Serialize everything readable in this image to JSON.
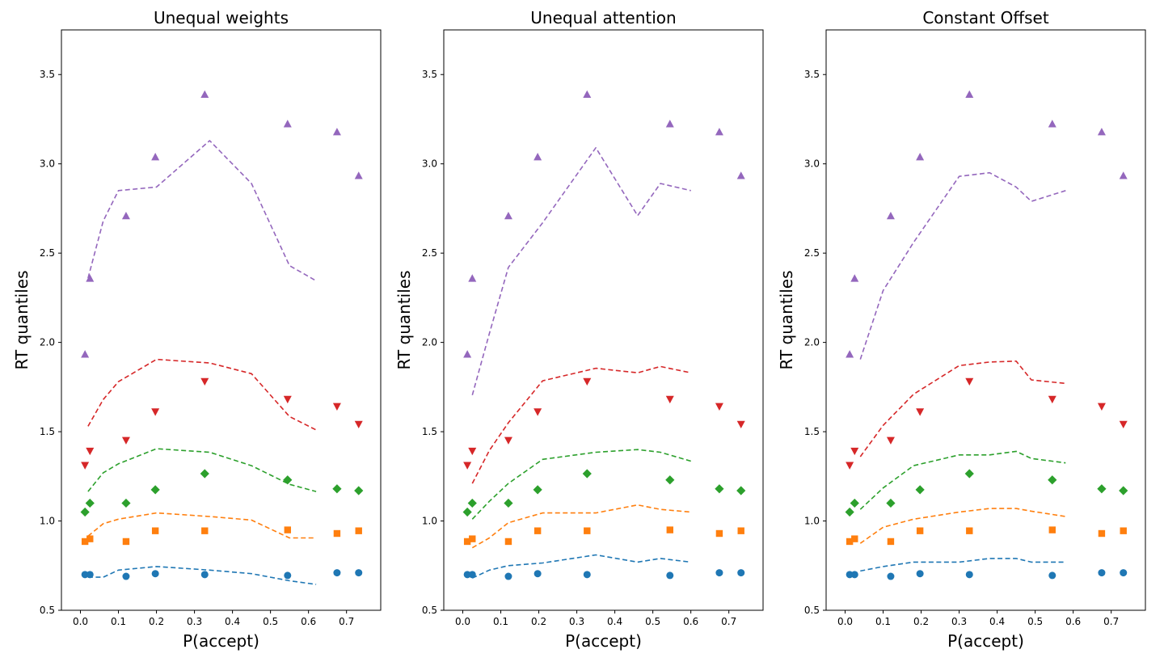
{
  "colors": {
    "q1": "#1f77b4",
    "q2": "#ff7f0e",
    "q3": "#2ca02c",
    "q4": "#d62728",
    "q5": "#9467bd"
  },
  "chart_data": [
    {
      "type": "scatter",
      "title": "Unequal weights",
      "xlabel": "P(accept)",
      "ylabel": "RT quantiles",
      "xlim": [
        -0.05,
        0.79
      ],
      "ylim": [
        0.5,
        3.75
      ],
      "xticks": [
        "0.0",
        "0.1",
        "0.2",
        "0.3",
        "0.4",
        "0.5",
        "0.6",
        "0.7"
      ],
      "yticks": [
        "0.5",
        "1.0",
        "1.5",
        "2.0",
        "2.5",
        "3.0",
        "3.5"
      ],
      "grid": false,
      "observed": {
        "x": [
          0.012,
          0.025,
          0.12,
          0.197,
          0.327,
          0.545,
          0.675,
          0.732
        ],
        "series": [
          {
            "marker": "circle",
            "color": "q1",
            "values": [
              0.7,
              0.7,
              0.69,
              0.705,
              0.7,
              0.695,
              0.71,
              0.71
            ]
          },
          {
            "marker": "square",
            "color": "q2",
            "values": [
              0.885,
              0.9,
              0.885,
              0.945,
              0.945,
              0.95,
              0.93,
              0.945
            ]
          },
          {
            "marker": "diamond",
            "color": "q3",
            "values": [
              1.05,
              1.1,
              1.1,
              1.175,
              1.265,
              1.23,
              1.18,
              1.17
            ]
          },
          {
            "marker": "triangle-down",
            "color": "q4",
            "values": [
              1.31,
              1.39,
              1.45,
              1.61,
              1.78,
              1.68,
              1.64,
              1.54
            ]
          },
          {
            "marker": "triangle-up",
            "color": "q5",
            "values": [
              1.935,
              2.36,
              2.71,
              3.04,
              3.39,
              3.225,
              3.18,
              2.935
            ]
          }
        ]
      },
      "predicted": {
        "x": [
          0.02,
          0.06,
          0.1,
          0.2,
          0.34,
          0.45,
          0.55,
          0.62
        ],
        "series": [
          {
            "color": "q1",
            "values": [
              0.685,
              0.685,
              0.725,
              0.745,
              0.725,
              0.705,
              0.665,
              0.645
            ]
          },
          {
            "color": "q2",
            "values": [
              0.915,
              0.985,
              1.01,
              1.045,
              1.025,
              1.005,
              0.905,
              0.905
            ]
          },
          {
            "color": "q3",
            "values": [
              1.165,
              1.27,
              1.32,
              1.405,
              1.385,
              1.31,
              1.205,
              1.165
            ]
          },
          {
            "color": "q4",
            "values": [
              1.53,
              1.68,
              1.78,
              1.905,
              1.885,
              1.825,
              1.585,
              1.51
            ]
          },
          {
            "color": "q5",
            "values": [
              2.36,
              2.68,
              2.85,
              2.87,
              3.13,
              2.89,
              2.43,
              2.345
            ]
          }
        ]
      }
    },
    {
      "type": "scatter",
      "title": "Unequal attention",
      "xlabel": "P(accept)",
      "ylabel": "RT quantiles",
      "xlim": [
        -0.05,
        0.79
      ],
      "ylim": [
        0.5,
        3.75
      ],
      "xticks": [
        "0.0",
        "0.1",
        "0.2",
        "0.3",
        "0.4",
        "0.5",
        "0.6",
        "0.7"
      ],
      "yticks": [
        "0.5",
        "1.0",
        "1.5",
        "2.0",
        "2.5",
        "3.0",
        "3.5"
      ],
      "grid": false,
      "observed": {
        "x": [
          0.012,
          0.025,
          0.12,
          0.197,
          0.327,
          0.545,
          0.675,
          0.732
        ],
        "series": [
          {
            "marker": "circle",
            "color": "q1",
            "values": [
              0.7,
              0.7,
              0.69,
              0.705,
              0.7,
              0.695,
              0.71,
              0.71
            ]
          },
          {
            "marker": "square",
            "color": "q2",
            "values": [
              0.885,
              0.9,
              0.885,
              0.945,
              0.945,
              0.95,
              0.93,
              0.945
            ]
          },
          {
            "marker": "diamond",
            "color": "q3",
            "values": [
              1.05,
              1.1,
              1.1,
              1.175,
              1.265,
              1.23,
              1.18,
              1.17
            ]
          },
          {
            "marker": "triangle-down",
            "color": "q4",
            "values": [
              1.31,
              1.39,
              1.45,
              1.61,
              1.78,
              1.68,
              1.64,
              1.54
            ]
          },
          {
            "marker": "triangle-up",
            "color": "q5",
            "values": [
              1.935,
              2.36,
              2.71,
              3.04,
              3.39,
              3.225,
              3.18,
              2.935
            ]
          }
        ]
      },
      "predicted": {
        "x": [
          0.025,
          0.07,
          0.12,
          0.21,
          0.35,
          0.46,
          0.52,
          0.6
        ],
        "series": [
          {
            "color": "q1",
            "values": [
              0.68,
              0.725,
              0.75,
              0.765,
              0.81,
              0.77,
              0.79,
              0.77
            ]
          },
          {
            "color": "q2",
            "values": [
              0.85,
              0.905,
              0.99,
              1.045,
              1.045,
              1.09,
              1.065,
              1.05
            ]
          },
          {
            "color": "q3",
            "values": [
              1.01,
              1.11,
              1.21,
              1.345,
              1.385,
              1.4,
              1.385,
              1.335
            ]
          },
          {
            "color": "q4",
            "values": [
              1.21,
              1.395,
              1.55,
              1.785,
              1.855,
              1.83,
              1.865,
              1.83
            ]
          },
          {
            "color": "q5",
            "values": [
              1.705,
              2.05,
              2.42,
              2.67,
              3.09,
              2.71,
              2.89,
              2.85
            ]
          }
        ]
      }
    },
    {
      "type": "scatter",
      "title": "Constant Offset",
      "xlabel": "P(accept)",
      "ylabel": "RT quantiles",
      "xlim": [
        -0.05,
        0.79
      ],
      "ylim": [
        0.5,
        3.75
      ],
      "xticks": [
        "0.0",
        "0.1",
        "0.2",
        "0.3",
        "0.4",
        "0.5",
        "0.6",
        "0.7"
      ],
      "yticks": [
        "0.5",
        "1.0",
        "1.5",
        "2.0",
        "2.5",
        "3.0",
        "3.5"
      ],
      "grid": false,
      "observed": {
        "x": [
          0.012,
          0.025,
          0.12,
          0.197,
          0.327,
          0.545,
          0.675,
          0.732
        ],
        "series": [
          {
            "marker": "circle",
            "color": "q1",
            "values": [
              0.7,
              0.7,
              0.69,
              0.705,
              0.7,
              0.695,
              0.71,
              0.71
            ]
          },
          {
            "marker": "square",
            "color": "q2",
            "values": [
              0.885,
              0.9,
              0.885,
              0.945,
              0.945,
              0.95,
              0.93,
              0.945
            ]
          },
          {
            "marker": "diamond",
            "color": "q3",
            "values": [
              1.05,
              1.1,
              1.1,
              1.175,
              1.265,
              1.23,
              1.18,
              1.17
            ]
          },
          {
            "marker": "triangle-down",
            "color": "q4",
            "values": [
              1.31,
              1.39,
              1.45,
              1.61,
              1.78,
              1.68,
              1.64,
              1.54
            ]
          },
          {
            "marker": "triangle-up",
            "color": "q5",
            "values": [
              1.935,
              2.36,
              2.71,
              3.04,
              3.39,
              3.225,
              3.18,
              2.935
            ]
          }
        ]
      },
      "predicted": {
        "x": [
          0.04,
          0.1,
          0.18,
          0.3,
          0.38,
          0.45,
          0.49,
          0.58
        ],
        "series": [
          {
            "color": "q1",
            "values": [
              0.72,
              0.745,
              0.77,
              0.77,
              0.79,
              0.79,
              0.77,
              0.77
            ]
          },
          {
            "color": "q2",
            "values": [
              0.875,
              0.965,
              1.01,
              1.05,
              1.07,
              1.07,
              1.055,
              1.025
            ]
          },
          {
            "color": "q3",
            "values": [
              1.065,
              1.185,
              1.31,
              1.37,
              1.37,
              1.39,
              1.35,
              1.325
            ]
          },
          {
            "color": "q4",
            "values": [
              1.36,
              1.535,
              1.71,
              1.87,
              1.89,
              1.895,
              1.79,
              1.77
            ]
          },
          {
            "color": "q5",
            "values": [
              1.905,
              2.29,
              2.56,
              2.93,
              2.95,
              2.87,
              2.79,
              2.85
            ]
          }
        ]
      }
    }
  ]
}
